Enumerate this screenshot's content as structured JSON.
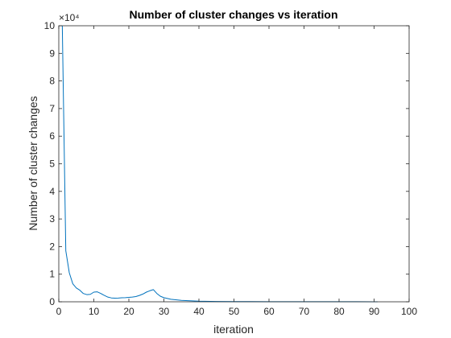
{
  "chart_data": {
    "type": "line",
    "title": "Number of cluster changes vs iteration",
    "xlabel": "iteration",
    "ylabel": "Number of cluster changes",
    "xlim": [
      0,
      100
    ],
    "ylim": [
      0,
      100000
    ],
    "x_ticks": [
      0,
      10,
      20,
      30,
      40,
      50,
      60,
      70,
      80,
      90,
      100
    ],
    "y_ticks": [
      0,
      10000,
      20000,
      30000,
      40000,
      50000,
      60000,
      70000,
      80000,
      90000,
      100000
    ],
    "x_tick_labels": [
      "0",
      "10",
      "20",
      "30",
      "40",
      "50",
      "60",
      "70",
      "80",
      "90",
      "100"
    ],
    "y_tick_labels": [
      "0",
      "1",
      "2",
      "3",
      "4",
      "5",
      "6",
      "7",
      "8",
      "9",
      "10"
    ],
    "y_exponent_label": "×10⁴",
    "grid": false,
    "series": [
      {
        "color": "#0072bd",
        "x": [
          1,
          2,
          3,
          4,
          5,
          6,
          7,
          8,
          9,
          10,
          11,
          12,
          13,
          14,
          15,
          16,
          17,
          18,
          19,
          20,
          21,
          22,
          23,
          24,
          25,
          26,
          27,
          28,
          29,
          30,
          32,
          35,
          40,
          45,
          50,
          55,
          60,
          65,
          70,
          75,
          80,
          85,
          90,
          91
        ],
        "y": [
          100000,
          18500,
          10500,
          6500,
          5000,
          4200,
          3000,
          2600,
          2700,
          3500,
          3600,
          3000,
          2300,
          1700,
          1400,
          1300,
          1350,
          1450,
          1500,
          1600,
          1700,
          1900,
          2300,
          2800,
          3500,
          4000,
          4400,
          3000,
          2000,
          1500,
          900,
          500,
          200,
          120,
          80,
          60,
          50,
          40,
          35,
          30,
          25,
          20,
          18,
          15
        ]
      }
    ]
  }
}
